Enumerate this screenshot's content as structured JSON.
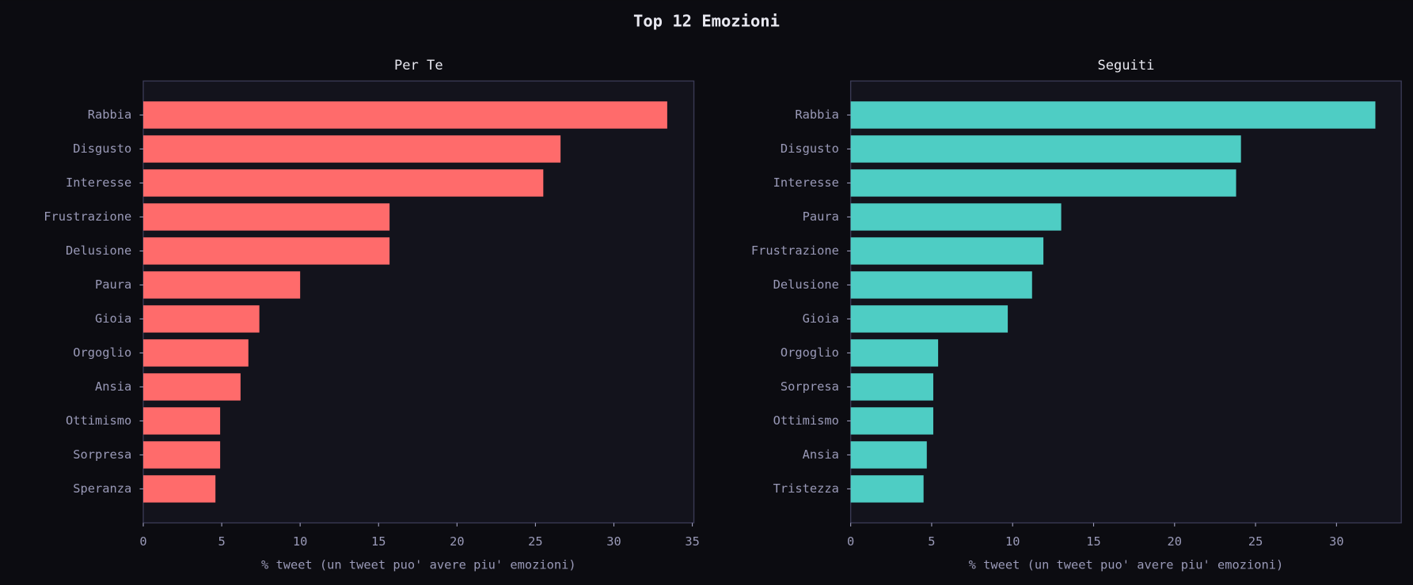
{
  "title": "Top 12 Emozioni",
  "chart_data": [
    {
      "type": "barh",
      "title": "Per Te",
      "xlabel": "% tweet (un tweet puo' avere piu' emozioni)",
      "categories": [
        "Rabbia",
        "Disgusto",
        "Interesse",
        "Frustrazione",
        "Delusione",
        "Paura",
        "Gioia",
        "Orgoglio",
        "Ansia",
        "Ottimismo",
        "Sorpresa",
        "Speranza"
      ],
      "values": [
        33.4,
        26.6,
        25.5,
        15.7,
        15.7,
        10.0,
        7.4,
        6.7,
        6.2,
        4.9,
        4.9,
        4.6
      ],
      "color": "#ff6b6b",
      "xlim": [
        0,
        35.1
      ],
      "xticks": [
        0,
        5,
        10,
        15,
        20,
        25,
        30,
        35
      ]
    },
    {
      "type": "barh",
      "title": "Seguiti",
      "xlabel": "% tweet (un tweet puo' avere piu' emozioni)",
      "categories": [
        "Rabbia",
        "Disgusto",
        "Interesse",
        "Paura",
        "Frustrazione",
        "Delusione",
        "Gioia",
        "Orgoglio",
        "Sorpresa",
        "Ottimismo",
        "Ansia",
        "Tristezza"
      ],
      "values": [
        32.4,
        24.1,
        23.8,
        13.0,
        11.9,
        11.2,
        9.7,
        5.4,
        5.1,
        5.1,
        4.7,
        4.5
      ],
      "color": "#4ecdc4",
      "xlim": [
        0,
        34.0
      ],
      "xticks": [
        0,
        5,
        10,
        15,
        20,
        25,
        30
      ]
    }
  ]
}
